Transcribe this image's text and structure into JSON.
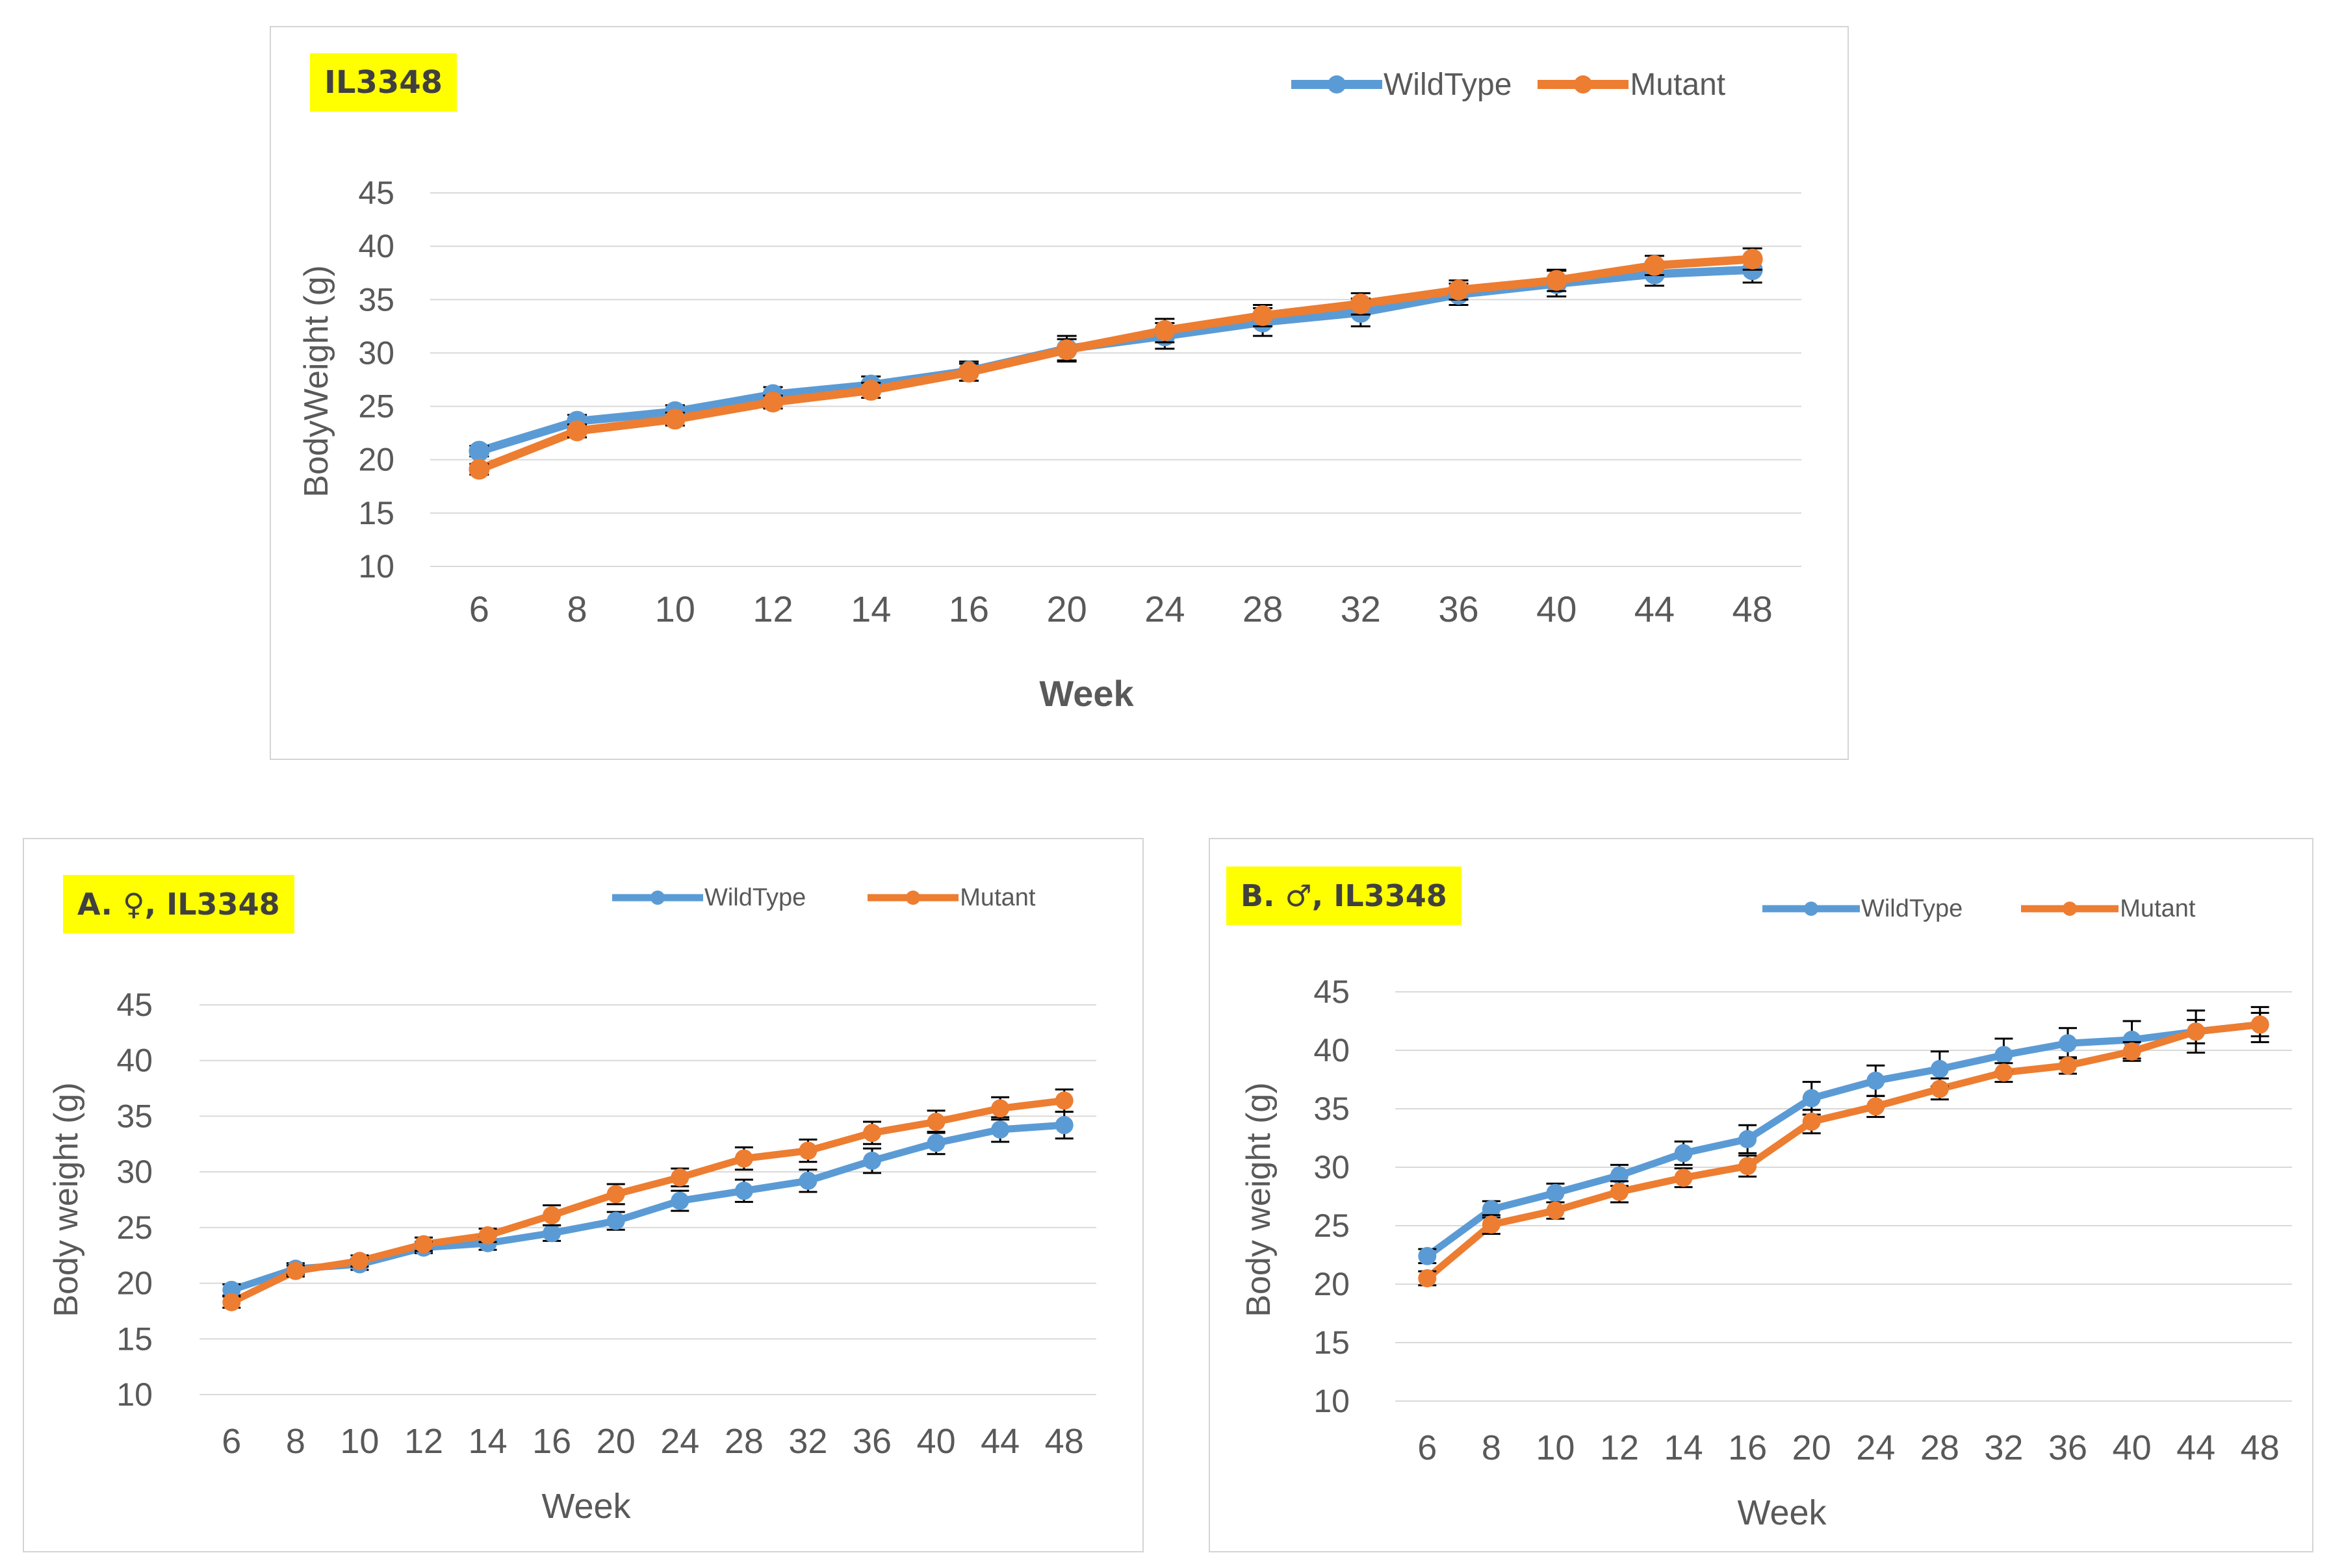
{
  "colors": {
    "wildtype": "#5b9bd5",
    "mutant": "#ed7d31",
    "grid": "#d9d9d9",
    "badge": "#ffff00"
  },
  "chart_data": [
    {
      "type": "line",
      "title": "IL3348",
      "xlabel": "Week",
      "ylabel": "BodyWeight (g)",
      "categories": [
        "6",
        "8",
        "10",
        "12",
        "14",
        "16",
        "20",
        "24",
        "28",
        "32",
        "36",
        "40",
        "44",
        "48"
      ],
      "ylim": [
        10,
        45
      ],
      "yticks": [
        10,
        15,
        20,
        25,
        30,
        35,
        40,
        45
      ],
      "legend_position": "top-right",
      "series": [
        {
          "name": "WildType",
          "color": "#5b9bd5",
          "values": [
            20.8,
            23.6,
            24.5,
            26.1,
            27.0,
            28.3,
            30.4,
            31.6,
            32.9,
            33.8,
            35.5,
            36.5,
            37.4,
            37.8
          ],
          "errors": [
            0.5,
            0.6,
            0.6,
            0.7,
            0.8,
            0.9,
            1.2,
            1.2,
            1.3,
            1.3,
            1.0,
            1.2,
            1.1,
            1.2
          ]
        },
        {
          "name": "Mutant",
          "color": "#ed7d31",
          "values": [
            19.1,
            22.7,
            23.8,
            25.4,
            26.5,
            28.2,
            30.3,
            32.1,
            33.5,
            34.6,
            35.9,
            36.8,
            38.2,
            38.8
          ],
          "errors": [
            0.5,
            0.6,
            0.6,
            0.6,
            0.7,
            0.8,
            1.0,
            1.1,
            1.0,
            1.0,
            0.9,
            1.0,
            0.9,
            1.0
          ]
        }
      ]
    },
    {
      "type": "line",
      "title": "A. ♀, IL3348",
      "xlabel": "Week",
      "ylabel": "Body weight (g)",
      "categories": [
        "6",
        "8",
        "10",
        "12",
        "14",
        "16",
        "20",
        "24",
        "28",
        "32",
        "36",
        "40",
        "44",
        "48"
      ],
      "ylim": [
        10,
        45
      ],
      "yticks": [
        10,
        15,
        20,
        25,
        30,
        35,
        40,
        45
      ],
      "legend_position": "top-right",
      "series": [
        {
          "name": "WildType",
          "color": "#5b9bd5",
          "values": [
            19.4,
            21.3,
            21.7,
            23.2,
            23.6,
            24.5,
            25.6,
            27.4,
            28.3,
            29.2,
            31.0,
            32.6,
            33.8,
            34.2
          ],
          "errors": [
            0.5,
            0.5,
            0.5,
            0.5,
            0.6,
            0.7,
            0.8,
            0.9,
            1.0,
            1.0,
            1.1,
            1.0,
            1.1,
            1.2
          ]
        },
        {
          "name": "Mutant",
          "color": "#ed7d31",
          "values": [
            18.3,
            21.1,
            22.0,
            23.5,
            24.3,
            26.1,
            28.0,
            29.5,
            31.2,
            31.9,
            33.5,
            34.5,
            35.7,
            36.4
          ],
          "errors": [
            0.5,
            0.5,
            0.5,
            0.6,
            0.6,
            0.9,
            0.9,
            0.8,
            1.0,
            1.0,
            1.0,
            1.0,
            1.0,
            1.0
          ]
        }
      ]
    },
    {
      "type": "line",
      "title": "B. ♂, IL3348",
      "xlabel": "Week",
      "ylabel": "Body weight (g)",
      "categories": [
        "6",
        "8",
        "10",
        "12",
        "14",
        "16",
        "20",
        "24",
        "28",
        "32",
        "36",
        "40",
        "44",
        "48"
      ],
      "ylim": [
        10,
        45
      ],
      "yticks": [
        10,
        15,
        20,
        25,
        30,
        35,
        40,
        45
      ],
      "legend_position": "top-right",
      "series": [
        {
          "name": "WildType",
          "color": "#5b9bd5",
          "values": [
            22.4,
            26.4,
            27.8,
            29.3,
            31.2,
            32.4,
            35.9,
            37.4,
            38.4,
            39.6,
            40.6,
            40.9,
            41.6,
            42.2
          ],
          "errors": [
            0.6,
            0.7,
            0.8,
            0.9,
            1.0,
            1.2,
            1.4,
            1.3,
            1.5,
            1.4,
            1.3,
            1.6,
            1.8,
            1.5
          ]
        },
        {
          "name": "Mutant",
          "color": "#ed7d31",
          "values": [
            20.5,
            25.1,
            26.3,
            27.9,
            29.1,
            30.1,
            33.9,
            35.2,
            36.7,
            38.1,
            38.7,
            39.9,
            41.6,
            42.2
          ],
          "errors": [
            0.6,
            0.8,
            0.7,
            0.9,
            0.8,
            0.9,
            1.0,
            0.9,
            0.9,
            0.8,
            0.7,
            0.8,
            1.0,
            1.0
          ]
        }
      ]
    }
  ]
}
